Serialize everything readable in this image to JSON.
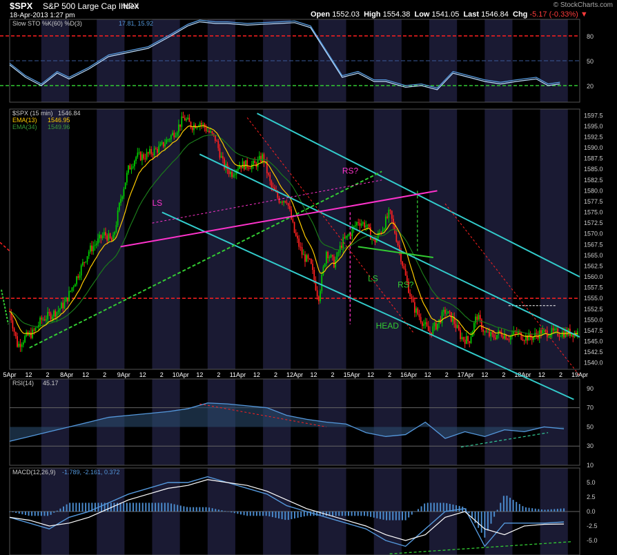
{
  "header": {
    "symbol": "$SPX",
    "name": "S&P 500 Large Cap Index",
    "exchange": "INDX",
    "datetime": "18-Apr-2013 1:27 pm",
    "watermark": "© StockCharts.com",
    "open_label": "Open",
    "open": "1552.03",
    "high_label": "High",
    "high": "1554.38",
    "low_label": "Low",
    "low": "1541.05",
    "last_label": "Last",
    "last": "1546.84",
    "chg_label": "Chg",
    "chg": "-5.17 (-0.33%)"
  },
  "colors": {
    "background": "#000000",
    "shade": "#1a1a33",
    "price_up": "#00cc00",
    "price_down": "#ff2020",
    "cyan": "#33cccc",
    "magenta": "#ff33cc",
    "green_trend": "#33cc33",
    "red_level": "#ff2020",
    "ema13": "#ffcc00",
    "ema34": "#1a7a1a",
    "indicator": "#5599dd"
  },
  "chart_data": [
    {
      "type": "line",
      "panel": "Slow Stochastic",
      "title": "Slow STO %K(60) %D(3)",
      "values_text": "17.81, 15.92",
      "ylim": [
        0,
        100
      ],
      "yticks": [
        "80",
        "50",
        "20"
      ],
      "levels": [
        80,
        20
      ],
      "series": [
        {
          "name": "%K",
          "x": [
            0,
            4,
            8,
            12,
            15,
            20,
            25,
            30,
            35,
            40,
            45,
            48,
            52,
            55,
            60,
            64,
            68,
            72,
            76,
            80,
            84,
            88,
            92,
            95,
            100,
            104,
            108,
            112,
            116,
            120,
            124,
            128,
            133,
            136,
            139
          ],
          "values": [
            45,
            30,
            20,
            35,
            28,
            40,
            55,
            60,
            65,
            78,
            92,
            97,
            95,
            95,
            93,
            94,
            95,
            96,
            90,
            60,
            30,
            35,
            25,
            25,
            18,
            20,
            15,
            35,
            30,
            25,
            22,
            25,
            28,
            20,
            22
          ]
        }
      ]
    },
    {
      "type": "candlestick",
      "panel": "Price",
      "title": "$SPX (15 min)",
      "last_text": "1546.84",
      "legend": [
        {
          "name": "EMA(13)",
          "value": "1546.95"
        },
        {
          "name": "EMA(34)",
          "value": "1549.96"
        }
      ],
      "ylim": [
        1538.5,
        1599
      ],
      "yticks": [
        "1597.5",
        "1595.0",
        "1592.5",
        "1590.0",
        "1587.5",
        "1585.0",
        "1582.5",
        "1580.0",
        "1577.5",
        "1575.0",
        "1572.5",
        "1570.0",
        "1567.5",
        "1565.0",
        "1562.5",
        "1560.0",
        "1557.5",
        "1555.0",
        "1552.5",
        "1550.0",
        "1547.5",
        "1545.0",
        "1542.5",
        "1540.0"
      ],
      "x_tick_labels": [
        "5Apr",
        "12",
        "2",
        "8Apr",
        "12",
        "2",
        "9Apr",
        "12",
        "2",
        "10Apr",
        "12",
        "2",
        "11Apr",
        "12",
        "2",
        "12Apr",
        "12",
        "2",
        "15Apr",
        "12",
        "2",
        "16Apr",
        "12",
        "2",
        "17Apr",
        "12",
        "2",
        "18Apr",
        "12",
        "2",
        "19Apr"
      ],
      "close_path": {
        "x": [
          0,
          2,
          4,
          6,
          8,
          10,
          12,
          14,
          16,
          18,
          20,
          22,
          24,
          26,
          28,
          30,
          32,
          34,
          36,
          38,
          40,
          42,
          44,
          46,
          48,
          50,
          52,
          54,
          56,
          58,
          60,
          62,
          64,
          66,
          68,
          70,
          72,
          74,
          76,
          78,
          80,
          82,
          84,
          86,
          88,
          90,
          92,
          94,
          96,
          98,
          100,
          102,
          104,
          106,
          108,
          110,
          112,
          114,
          116,
          118,
          120,
          122,
          124,
          126,
          128,
          130,
          132,
          134,
          136,
          138,
          140,
          142,
          144
        ],
        "values": [
          1552,
          1544,
          1546,
          1547,
          1550,
          1551,
          1552,
          1554,
          1558,
          1562,
          1566,
          1568,
          1570,
          1568,
          1578,
          1585,
          1588,
          1588,
          1589,
          1590,
          1592,
          1594,
          1597,
          1595,
          1596,
          1594,
          1592,
          1586,
          1584,
          1586,
          1586,
          1586,
          1588,
          1581,
          1578,
          1578,
          1570,
          1565,
          1563,
          1555,
          1566,
          1563,
          1568,
          1570,
          1573,
          1572,
          1568,
          1571,
          1575,
          1568,
          1560,
          1553,
          1550,
          1547,
          1549,
          1552,
          1550,
          1546,
          1545,
          1551,
          1547,
          1546,
          1547,
          1546,
          1547,
          1546,
          1546,
          1547,
          1547,
          1547,
          1547,
          1547,
          1547
        ]
      },
      "horizontal_levels": [
        1555.0
      ],
      "annotations": [
        "LS",
        "RS?",
        "LS",
        "RS?",
        "HEAD"
      ]
    },
    {
      "type": "area",
      "panel": "RSI",
      "title": "RSI(14)",
      "values_text": "45.17",
      "ylim": [
        10,
        100
      ],
      "yticks": [
        "90",
        "70",
        "50",
        "30",
        "10"
      ],
      "levels": [
        70,
        30
      ],
      "series": [
        {
          "name": "RSI",
          "x": [
            0,
            5,
            10,
            15,
            20,
            25,
            30,
            35,
            40,
            45,
            50,
            55,
            60,
            65,
            70,
            75,
            80,
            85,
            90,
            95,
            100,
            105,
            110,
            115,
            120,
            125,
            130,
            135,
            140
          ],
          "values": [
            35,
            40,
            45,
            50,
            55,
            60,
            62,
            64,
            66,
            69,
            75,
            74,
            72,
            70,
            62,
            58,
            55,
            53,
            44,
            40,
            42,
            55,
            38,
            45,
            40,
            47,
            45,
            50,
            48
          ]
        }
      ]
    },
    {
      "type": "line",
      "panel": "MACD",
      "title": "MACD(12,26,9)",
      "values_text": "-1.789, -2.161, 0.372",
      "ylim": [
        -7.5,
        7.5
      ],
      "yticks": [
        "5.0",
        "2.5",
        "0.0",
        "-2.5",
        "-5.0"
      ],
      "series": [
        {
          "name": "MACD",
          "x": [
            0,
            5,
            10,
            15,
            20,
            25,
            30,
            35,
            40,
            45,
            50,
            55,
            60,
            65,
            70,
            75,
            80,
            85,
            90,
            95,
            100,
            105,
            110,
            115,
            120,
            125,
            130,
            135,
            140
          ],
          "values": [
            -1,
            -2,
            -3,
            -1,
            0,
            1.5,
            3,
            4,
            5,
            5,
            6,
            5,
            4,
            3,
            1,
            0,
            -1,
            -2,
            -3,
            -5,
            -6,
            -3,
            0,
            0.5,
            -6,
            -2,
            -2,
            -2,
            -1.8
          ]
        },
        {
          "name": "Signal",
          "x": [
            0,
            5,
            10,
            15,
            20,
            25,
            30,
            35,
            40,
            45,
            50,
            55,
            60,
            65,
            70,
            75,
            80,
            85,
            90,
            95,
            100,
            105,
            110,
            115,
            120,
            125,
            130,
            135,
            140
          ],
          "values": [
            -1,
            -1.5,
            -2.5,
            -2,
            -1,
            0.5,
            2,
            3,
            4,
            4.5,
            5.5,
            5,
            4.5,
            3.5,
            2,
            0.5,
            -0.5,
            -1.5,
            -2.5,
            -4,
            -5,
            -4,
            -1,
            0,
            -3,
            -4,
            -2.5,
            -2.2,
            -2.16
          ]
        }
      ]
    }
  ]
}
